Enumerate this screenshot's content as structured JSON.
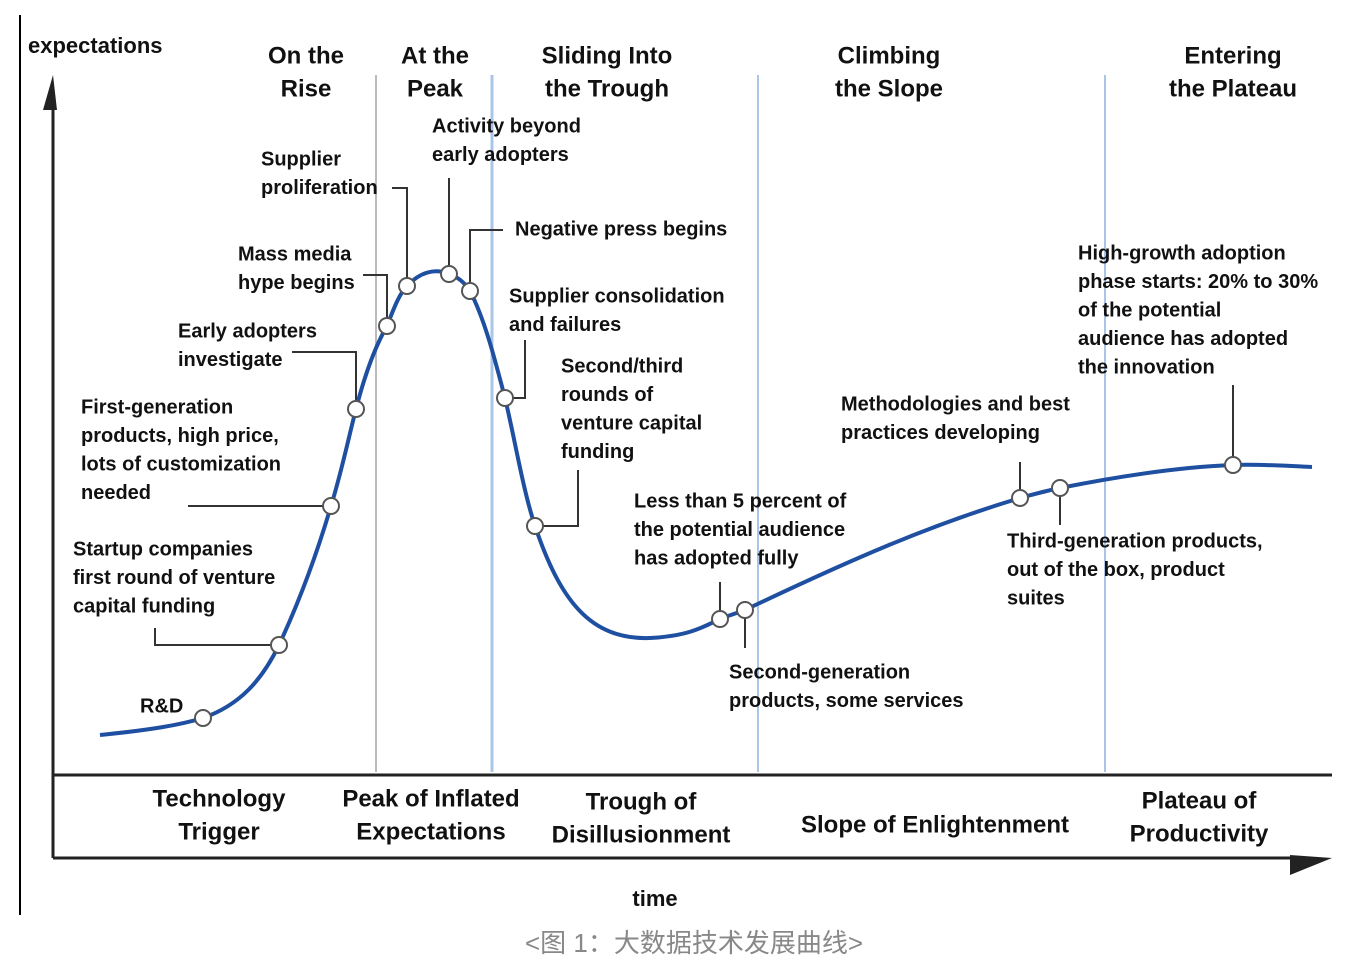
{
  "axes": {
    "y_label": "expectations",
    "x_label": "time"
  },
  "top_phases": [
    [
      "On the",
      "Rise"
    ],
    [
      "At the",
      "Peak"
    ],
    [
      "Sliding Into",
      "the Trough"
    ],
    [
      "Climbing",
      "the Slope"
    ],
    [
      "Entering",
      "the Plateau"
    ]
  ],
  "bottom_phases": [
    [
      "Technology",
      "Trigger"
    ],
    [
      "Peak of Inflated",
      "Expectations"
    ],
    [
      "Trough of",
      "Disillusionment"
    ],
    [
      "Slope of Enlightenment"
    ],
    [
      "Plateau of",
      "Productivity"
    ]
  ],
  "annotations": [
    [
      "R&D"
    ],
    [
      "Startup companies",
      "first round of venture",
      "capital funding"
    ],
    [
      "First-generation",
      "products, high price,",
      "lots of customization",
      "needed"
    ],
    [
      "Early adopters",
      "investigate"
    ],
    [
      "Mass media",
      "hype begins"
    ],
    [
      "Supplier",
      "proliferation"
    ],
    [
      "Activity beyond",
      "early adopters"
    ],
    [
      "Negative press begins"
    ],
    [
      "Supplier consolidation",
      "and failures"
    ],
    [
      "Second/third",
      "rounds of",
      "venture capital",
      "funding"
    ],
    [
      "Less than 5 percent of",
      "the potential audience",
      "has adopted fully"
    ],
    [
      "Second-generation",
      "products, some services"
    ],
    [
      "Methodologies and best",
      "practices developing"
    ],
    [
      "Third-generation products,",
      "out of the box, product",
      "suites"
    ],
    [
      "High-growth adoption",
      "phase starts: 20% to 30%",
      "of the potential",
      "audience has adopted",
      "the innovation"
    ]
  ],
  "caption": "<图 1：大数据技术发展曲线>"
}
